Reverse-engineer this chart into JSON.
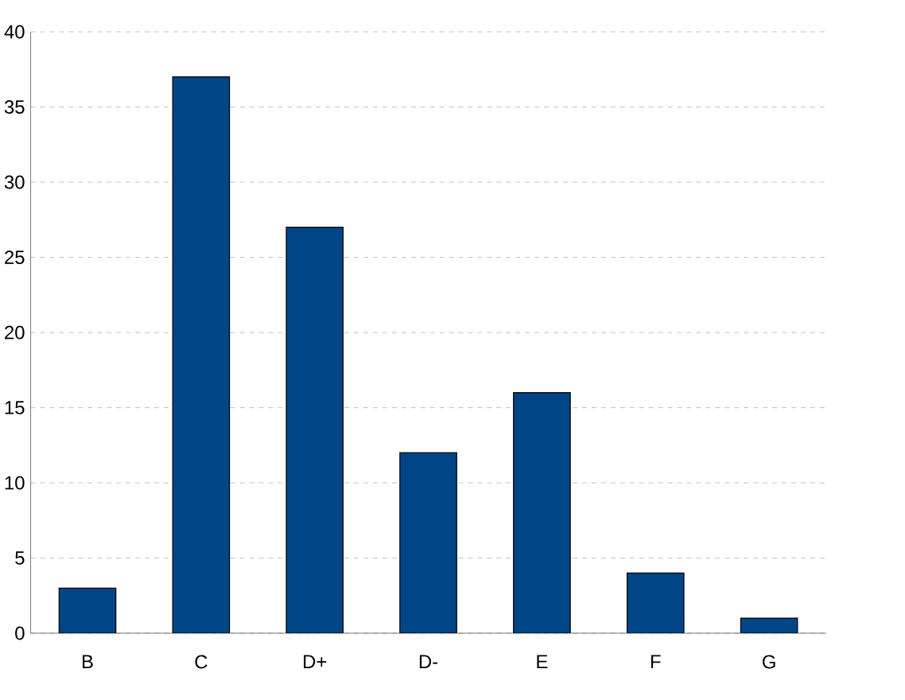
{
  "chart_data": {
    "type": "bar",
    "categories": [
      "B",
      "C",
      "D+",
      "D-",
      "E",
      "F",
      "G"
    ],
    "values": [
      3,
      37,
      27,
      12,
      16,
      4,
      1
    ],
    "color": "#004586",
    "ylim": [
      0,
      40
    ],
    "yticks": [
      0,
      5,
      10,
      15,
      20,
      25,
      30,
      35,
      40
    ],
    "grid": "y"
  }
}
